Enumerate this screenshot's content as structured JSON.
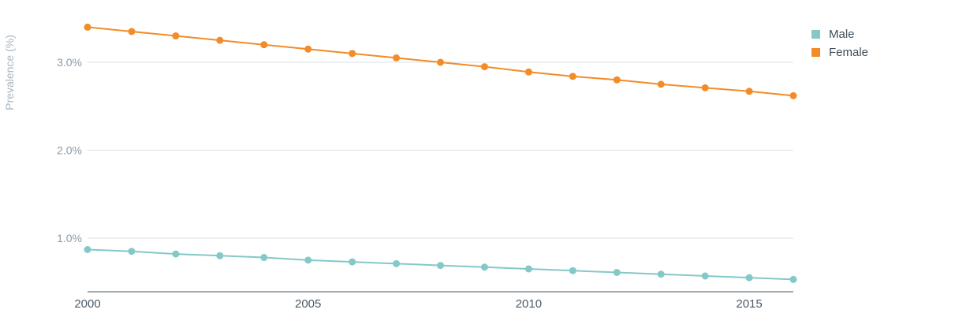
{
  "chart_data": {
    "type": "line",
    "title": "",
    "xlabel": "",
    "ylabel": "Prevalence (%)",
    "x": [
      2000,
      2001,
      2002,
      2003,
      2004,
      2005,
      2006,
      2007,
      2008,
      2009,
      2010,
      2011,
      2012,
      2013,
      2014,
      2015,
      2016
    ],
    "xlim": [
      2000,
      2016
    ],
    "ylim": [
      0.4,
      3.4
    ],
    "y_ticks": [
      1.0,
      2.0,
      3.0
    ],
    "y_tick_labels": [
      "1.0%",
      "2.0%",
      "3.0%"
    ],
    "x_ticks": [
      2000,
      2005,
      2010,
      2015
    ],
    "x_tick_labels": [
      "2000",
      "2005",
      "2010",
      "2015"
    ],
    "grid": true,
    "legend_position": "top-right",
    "series": [
      {
        "name": "Male",
        "color": "#84c8c8",
        "values": [
          0.87,
          0.85,
          0.82,
          0.8,
          0.78,
          0.75,
          0.73,
          0.71,
          0.69,
          0.67,
          0.65,
          0.63,
          0.61,
          0.59,
          0.57,
          0.55,
          0.53
        ]
      },
      {
        "name": "Female",
        "color": "#f28c28",
        "values": [
          3.4,
          3.35,
          3.3,
          3.25,
          3.2,
          3.15,
          3.1,
          3.05,
          3.0,
          2.95,
          2.89,
          2.84,
          2.8,
          2.75,
          2.71,
          2.67,
          2.62
        ]
      }
    ]
  }
}
